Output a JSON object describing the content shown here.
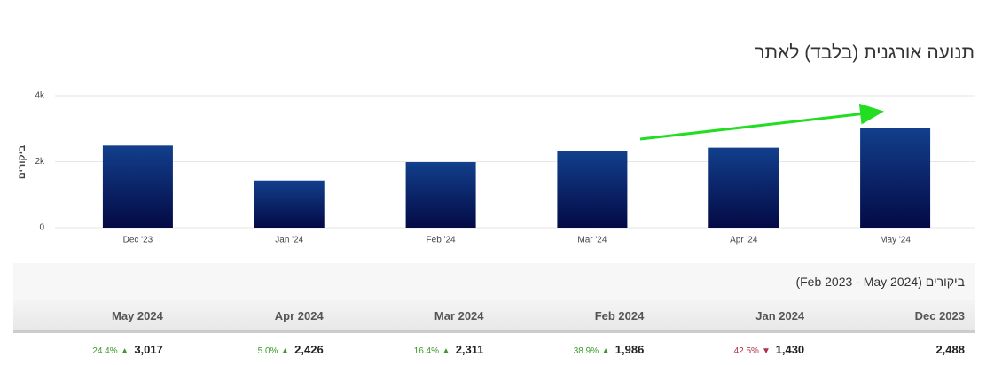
{
  "chart_data": {
    "type": "bar",
    "title": "תנועה אורגנית (בלבד) לאתר",
    "y_label": "ביקורים",
    "categories": [
      "Dec '23",
      "Jan '24",
      "Feb '24",
      "Mar '24",
      "Apr '24",
      "May '24"
    ],
    "values": [
      2488,
      1430,
      1986,
      2311,
      2426,
      3017
    ],
    "ylim": [
      0,
      4000
    ],
    "yticks": [
      0,
      {
        "value": 2000,
        "label": "2k"
      },
      {
        "value": 4000,
        "label": "4k"
      }
    ],
    "grid": true,
    "color_top": "#123f8c",
    "color_bottom": "#040a45"
  },
  "table": {
    "caption": "ביקורים (Feb 2023 - May 2024)",
    "headers": [
      "Dec 2023",
      "Jan 2024",
      "Feb 2024",
      "Mar 2024",
      "Apr 2024",
      "May 2024"
    ],
    "rows": [
      [
        {
          "value": "2,488"
        },
        {
          "value": "1,430",
          "change": "42.5%",
          "trend": "down"
        },
        {
          "value": "1,986",
          "change": "38.9%",
          "trend": "up"
        },
        {
          "value": "2,311",
          "change": "16.4%",
          "trend": "up"
        },
        {
          "value": "2,426",
          "change": "5.0%",
          "trend": "up"
        },
        {
          "value": "3,017",
          "change": "24.4%",
          "trend": "up"
        }
      ]
    ]
  }
}
